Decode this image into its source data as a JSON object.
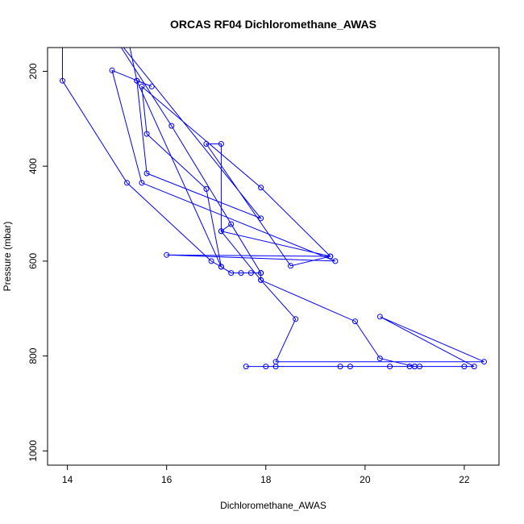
{
  "chart_data": {
    "type": "line",
    "title": "ORCAS RF04 Dichloromethane_AWAS",
    "xlabel": "Dichloromethane_AWAS",
    "ylabel": "Pressure (mbar)",
    "xlim": [
      13.6,
      22.7
    ],
    "ylim": [
      1030,
      150
    ],
    "y_inverted": true,
    "grid": false,
    "x_ticks": [
      14,
      16,
      18,
      20,
      22
    ],
    "y_ticks": [
      200,
      400,
      600,
      800,
      1000
    ],
    "series": [
      {
        "color": "#0000ff",
        "marker": "open-circle",
        "clip_top": true,
        "points": [
          [
            13.9,
            120
          ],
          [
            13.9,
            220
          ],
          [
            15.2,
            435
          ],
          [
            16.9,
            600
          ],
          [
            17.1,
            612
          ],
          [
            17.3,
            625
          ],
          [
            17.5,
            625
          ],
          [
            17.7,
            625
          ],
          [
            17.9,
            625
          ],
          [
            16.1,
            315
          ],
          [
            14.9,
            120
          ],
          [
            17.9,
            510
          ],
          [
            15.6,
            415
          ],
          [
            15.4,
            220
          ],
          [
            15.7,
            232
          ],
          [
            14.9,
            198
          ],
          [
            15.5,
            435
          ],
          [
            19.4,
            600
          ],
          [
            16.0,
            587
          ],
          [
            19.3,
            590
          ],
          [
            17.1,
            537
          ],
          [
            17.9,
            640
          ],
          [
            18.6,
            722
          ],
          [
            18.2,
            812
          ],
          [
            22.4,
            812
          ],
          [
            20.3,
            717
          ],
          [
            22.2,
            822
          ],
          [
            22.0,
            822
          ],
          [
            21.1,
            822
          ],
          [
            21.0,
            822
          ],
          [
            20.9,
            822
          ],
          [
            20.5,
            822
          ],
          [
            19.7,
            822
          ],
          [
            19.5,
            822
          ],
          [
            18.2,
            822
          ],
          [
            18.0,
            822
          ],
          [
            17.6,
            822
          ],
          [
            21.0,
            822
          ],
          [
            20.3,
            805
          ],
          [
            19.8,
            727
          ],
          [
            17.9,
            640
          ],
          [
            17.9,
            625
          ],
          [
            17.3,
            522
          ],
          [
            17.1,
            537
          ],
          [
            17.1,
            353
          ],
          [
            16.8,
            353
          ],
          [
            18.5,
            610
          ],
          [
            19.3,
            590
          ],
          [
            17.9,
            445
          ],
          [
            15.5,
            232
          ],
          [
            15.6,
            332
          ],
          [
            16.8,
            448
          ],
          [
            17.1,
            612
          ],
          [
            15.4,
            220
          ],
          [
            15.2,
            120
          ],
          [
            15.6,
            120
          ]
        ]
      }
    ]
  }
}
